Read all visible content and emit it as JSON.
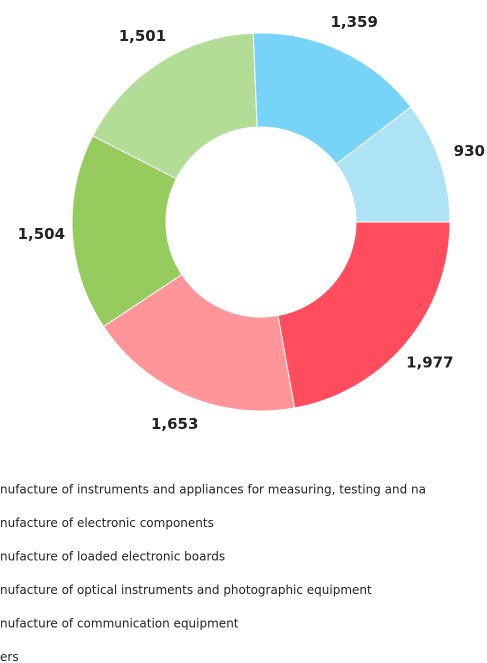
{
  "chart_data": {
    "type": "pie",
    "categories": [
      "nufacture of instruments and appliances for measuring, testing and na",
      "nufacture of electronic components",
      "nufacture of loaded electronic boards",
      "nufacture of optical instruments and photographic equipment",
      "nufacture of communication equipment",
      "ers"
    ],
    "values": [
      1977,
      1653,
      1504,
      1501,
      1359,
      930
    ],
    "value_labels": [
      "1,977",
      "1,653",
      "1,504",
      "1,501",
      "1,359",
      "930"
    ],
    "colors": [
      "#ff4d5e",
      "#ff9499",
      "#96cc5e",
      "#b3dd96",
      "#77d3f7",
      "#aee3f5"
    ]
  }
}
